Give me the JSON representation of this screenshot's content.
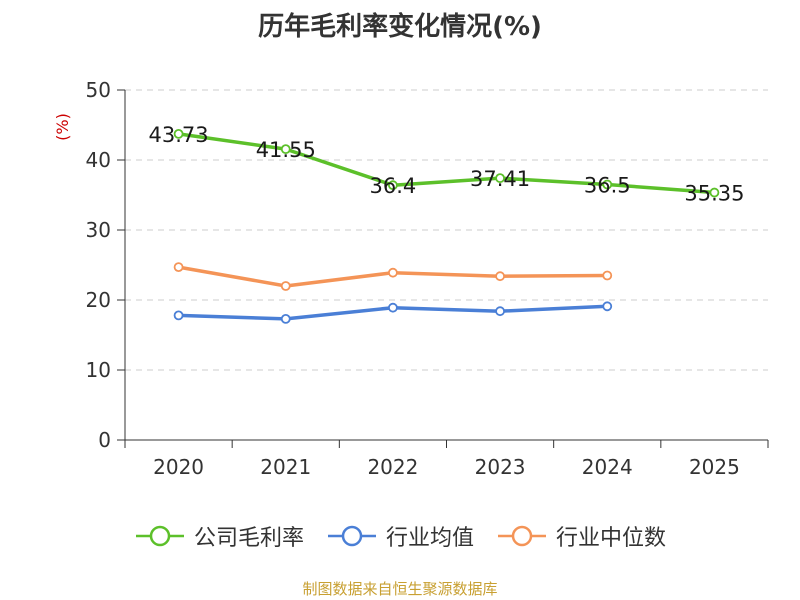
{
  "chart_data": {
    "type": "line",
    "title": "历年毛利率变化情况(%)",
    "ylabel": "(%)",
    "ylim": [
      0,
      50
    ],
    "yticks": [
      0,
      10,
      20,
      30,
      40,
      50
    ],
    "categories": [
      "2020",
      "2021",
      "2022",
      "2023",
      "2024",
      "2025"
    ],
    "grid": true,
    "legend_position": "bottom",
    "series": [
      {
        "name": "公司毛利率",
        "color": "#5cc02a",
        "values": [
          43.73,
          41.55,
          36.4,
          37.41,
          36.5,
          35.35
        ],
        "labels": [
          "43.73",
          "41.55",
          "36.4",
          "37.41",
          "36.5",
          "35.35"
        ]
      },
      {
        "name": "行业均值",
        "color": "#4a7fd6",
        "values": [
          17.8,
          17.3,
          18.9,
          18.4,
          19.1,
          null
        ]
      },
      {
        "name": "行业中位数",
        "color": "#f49457",
        "values": [
          24.7,
          22.0,
          23.9,
          23.4,
          23.5,
          null
        ]
      }
    ],
    "source": "制图数据来自恒生聚源数据库"
  }
}
